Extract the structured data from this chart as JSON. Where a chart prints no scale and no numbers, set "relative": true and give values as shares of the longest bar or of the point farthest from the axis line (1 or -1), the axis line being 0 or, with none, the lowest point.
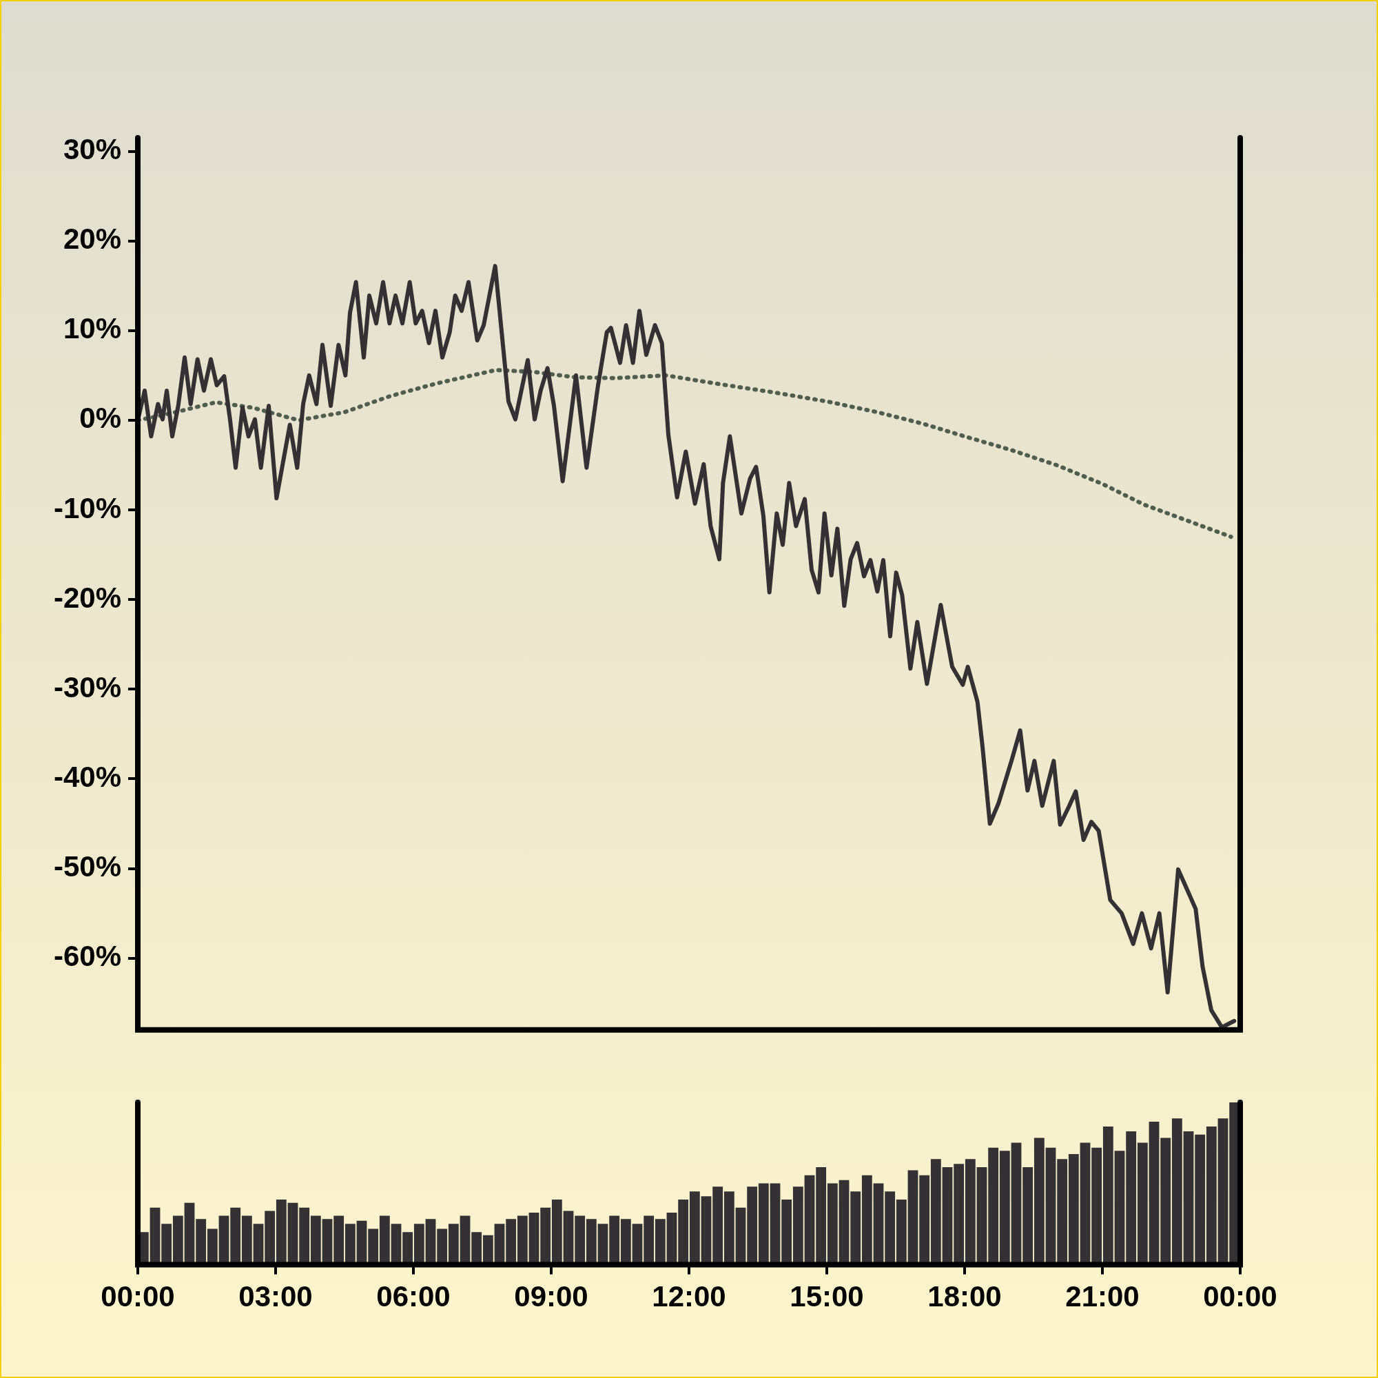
{
  "chart_data": [
    {
      "type": "line",
      "x": [
        0,
        0.15,
        0.29,
        0.44,
        0.54,
        0.63,
        0.75,
        0.88,
        1.02,
        1.15,
        1.3,
        1.44,
        1.59,
        1.72,
        1.88,
        2.01,
        2.13,
        2.28,
        2.41,
        2.55,
        2.68,
        2.85,
        3.02,
        3.31,
        3.47,
        3.6,
        3.73,
        3.89,
        4.02,
        4.2,
        4.37,
        4.52,
        4.62,
        4.75,
        4.92,
        5.04,
        5.19,
        5.34,
        5.48,
        5.61,
        5.76,
        5.92,
        6.05,
        6.19,
        6.34,
        6.48,
        6.63,
        6.79,
        6.91,
        7.05,
        7.2,
        7.39,
        7.53,
        7.78,
        8.07,
        8.22,
        8.35,
        8.49,
        8.64,
        8.77,
        8.92,
        9.06,
        9.25,
        9.54,
        9.77,
        10.02,
        10.21,
        10.3,
        10.5,
        10.63,
        10.78,
        10.92,
        11.07,
        11.26,
        11.41,
        11.55,
        11.74,
        11.93,
        12.13,
        12.32,
        12.47,
        12.66,
        12.74,
        12.89,
        13.14,
        13.33,
        13.46,
        13.62,
        13.75,
        13.91,
        14.04,
        14.18,
        14.33,
        14.52,
        14.67,
        14.82,
        14.95,
        15.1,
        15.23,
        15.38,
        15.52,
        15.66,
        15.81,
        15.95,
        16.1,
        16.23,
        16.38,
        16.51,
        16.64,
        16.82,
        16.97,
        17.18,
        17.48,
        17.73,
        17.96,
        18.07,
        18.28,
        18.39,
        18.55,
        18.74,
        19.02,
        19.21,
        19.37,
        19.52,
        19.69,
        19.94,
        20.08,
        20.27,
        20.42,
        20.59,
        20.76,
        20.92,
        21.17,
        21.42,
        21.67,
        21.86,
        22.06,
        22.24,
        22.42,
        22.65,
        23.03,
        23.18,
        23.37,
        23.6,
        23.87
      ],
      "series": [
        {
          "color": "#333133",
          "line_style": "solid",
          "values": [
            0,
            3.3,
            -1.8,
            1.8,
            0.1,
            3.3,
            -1.8,
            1.6,
            7,
            1.8,
            6.8,
            3.3,
            6.8,
            3.9,
            4.9,
            0,
            -5.3,
            1.4,
            -1.8,
            0.1,
            -5.3,
            1.6,
            -8.7,
            -0.5,
            -5.3,
            1.8,
            5,
            1.8,
            8.4,
            1.6,
            8.4,
            5,
            12,
            15.4,
            7,
            13.9,
            10.8,
            15.4,
            10.8,
            13.9,
            10.8,
            15.4,
            10.8,
            12.2,
            8.6,
            12.2,
            7,
            9.8,
            13.9,
            12.2,
            15.4,
            8.9,
            10.6,
            17.2,
            2.1,
            0.1,
            3.3,
            6.7,
            0.1,
            3.3,
            5.8,
            1.6,
            -6.8,
            5,
            -5.3,
            3.9,
            9.8,
            10.3,
            6.4,
            10.6,
            6.4,
            12.2,
            7.3,
            10.6,
            8.6,
            -1.6,
            -8.6,
            -3.5,
            -9.3,
            -4.9,
            -11.8,
            -15.5,
            -7,
            -1.8,
            -10.4,
            -6.5,
            -5.2,
            -10.7,
            -19.2,
            -10.4,
            -13.9,
            -7,
            -11.8,
            -8.8,
            -16.7,
            -19.2,
            -10.4,
            -17.3,
            -12.1,
            -20.7,
            -15.5,
            -13.7,
            -17.4,
            -15.6,
            -19.1,
            -15.6,
            -24.1,
            -17,
            -19.5,
            -27.7,
            -22.5,
            -29.4,
            -20.6,
            -27.5,
            -29.5,
            -27.5,
            -31.4,
            -36.4,
            -45,
            -42.7,
            -38,
            -34.6,
            -41.3,
            -38,
            -43,
            -38,
            -45.1,
            -43.1,
            -41.4,
            -46.8,
            -44.8,
            -45.8,
            -53.5,
            -55,
            -58.4,
            -55,
            -58.9,
            -55,
            -63.8,
            -50.1,
            -54.5,
            -60.9,
            -65.8,
            -67.7,
            -67
          ]
        },
        {
          "color": "#4f5e4f",
          "line_style": "dotted",
          "x": [
            0,
            0.4,
            0.9,
            1.7,
            2.5,
            3.5,
            4.5,
            5.5,
            6.5,
            7.8,
            8.6,
            9.5,
            10.4,
            11.5,
            12.7,
            13.85,
            15,
            16.1,
            17.1,
            18,
            19,
            20,
            21,
            21.9,
            23.8
          ],
          "values": [
            0,
            0.4,
            1,
            2,
            1.4,
            0,
            0.9,
            2.7,
            4.1,
            5.6,
            5.4,
            4.8,
            4.7,
            5,
            4,
            3.1,
            2.1,
            0.9,
            -0.4,
            -1.8,
            -3.3,
            -5,
            -7.1,
            -9.4,
            -13
          ]
        }
      ],
      "xlim": [
        0,
        24
      ],
      "tick_labels": "y",
      "marker": "none",
      "ylim": [
        -68,
        31.5
      ],
      "yticks": [
        {
          "value": 30,
          "label": "30%"
        },
        {
          "value": 20,
          "label": "20%"
        },
        {
          "value": 10,
          "label": "10%"
        },
        {
          "value": 0,
          "label": "0%"
        },
        {
          "value": -10,
          "label": "-10%"
        },
        {
          "value": -20,
          "label": "-20%"
        },
        {
          "value": -30,
          "label": "-30%"
        },
        {
          "value": -40,
          "label": "-40%"
        },
        {
          "value": -50,
          "label": "-50%"
        },
        {
          "value": -60,
          "label": "-60%"
        }
      ]
    },
    {
      "type": "bar",
      "relative": true,
      "color": "#333133",
      "tick_labels": "x",
      "xlim": [
        0,
        24
      ],
      "xticks": [
        {
          "value": 0,
          "label": "00:00"
        },
        {
          "value": 3,
          "label": "03:00"
        },
        {
          "value": 6,
          "label": "06:00"
        },
        {
          "value": 9,
          "label": "09:00"
        },
        {
          "value": 12,
          "label": "12:00"
        },
        {
          "value": 15,
          "label": "15:00"
        },
        {
          "value": 18,
          "label": "18:00"
        },
        {
          "value": 21,
          "label": "21:00"
        },
        {
          "value": 24,
          "label": "00:00"
        }
      ],
      "x": [
        0.125,
        0.375,
        0.625,
        0.875,
        1.125,
        1.375,
        1.625,
        1.875,
        2.125,
        2.375,
        2.625,
        2.875,
        3.125,
        3.375,
        3.625,
        3.875,
        4.125,
        4.375,
        4.625,
        4.875,
        5.125,
        5.375,
        5.625,
        5.875,
        6.125,
        6.375,
        6.625,
        6.875,
        7.125,
        7.375,
        7.625,
        7.875,
        8.125,
        8.375,
        8.625,
        8.875,
        9.125,
        9.375,
        9.625,
        9.875,
        10.125,
        10.375,
        10.625,
        10.875,
        11.125,
        11.375,
        11.625,
        11.875,
        12.125,
        12.375,
        12.625,
        12.875,
        13.125,
        13.375,
        13.625,
        13.875,
        14.125,
        14.375,
        14.625,
        14.875,
        15.125,
        15.375,
        15.625,
        15.875,
        16.125,
        16.375,
        16.625,
        16.875,
        17.125,
        17.375,
        17.625,
        17.875,
        18.125,
        18.375,
        18.625,
        18.875,
        19.125,
        19.375,
        19.625,
        19.875,
        20.125,
        20.375,
        20.625,
        20.875,
        21.125,
        21.375,
        21.625,
        21.875,
        22.125,
        22.375,
        22.625,
        22.875,
        23.125,
        23.375,
        23.625,
        23.875
      ],
      "values": [
        0.2,
        0.35,
        0.25,
        0.3,
        0.38,
        0.28,
        0.22,
        0.3,
        0.35,
        0.3,
        0.25,
        0.33,
        0.4,
        0.38,
        0.35,
        0.3,
        0.28,
        0.3,
        0.25,
        0.27,
        0.22,
        0.3,
        0.25,
        0.2,
        0.25,
        0.28,
        0.22,
        0.25,
        0.3,
        0.2,
        0.18,
        0.25,
        0.28,
        0.3,
        0.32,
        0.35,
        0.4,
        0.33,
        0.3,
        0.28,
        0.25,
        0.3,
        0.28,
        0.25,
        0.3,
        0.28,
        0.32,
        0.4,
        0.45,
        0.42,
        0.48,
        0.45,
        0.35,
        0.48,
        0.5,
        0.5,
        0.4,
        0.48,
        0.55,
        0.6,
        0.5,
        0.52,
        0.45,
        0.55,
        0.5,
        0.45,
        0.4,
        0.58,
        0.55,
        0.65,
        0.6,
        0.62,
        0.65,
        0.6,
        0.72,
        0.7,
        0.75,
        0.6,
        0.78,
        0.72,
        0.65,
        0.68,
        0.75,
        0.72,
        0.85,
        0.7,
        0.82,
        0.75,
        0.88,
        0.78,
        0.9,
        0.82,
        0.8,
        0.85,
        0.9,
        1
      ]
    }
  ]
}
